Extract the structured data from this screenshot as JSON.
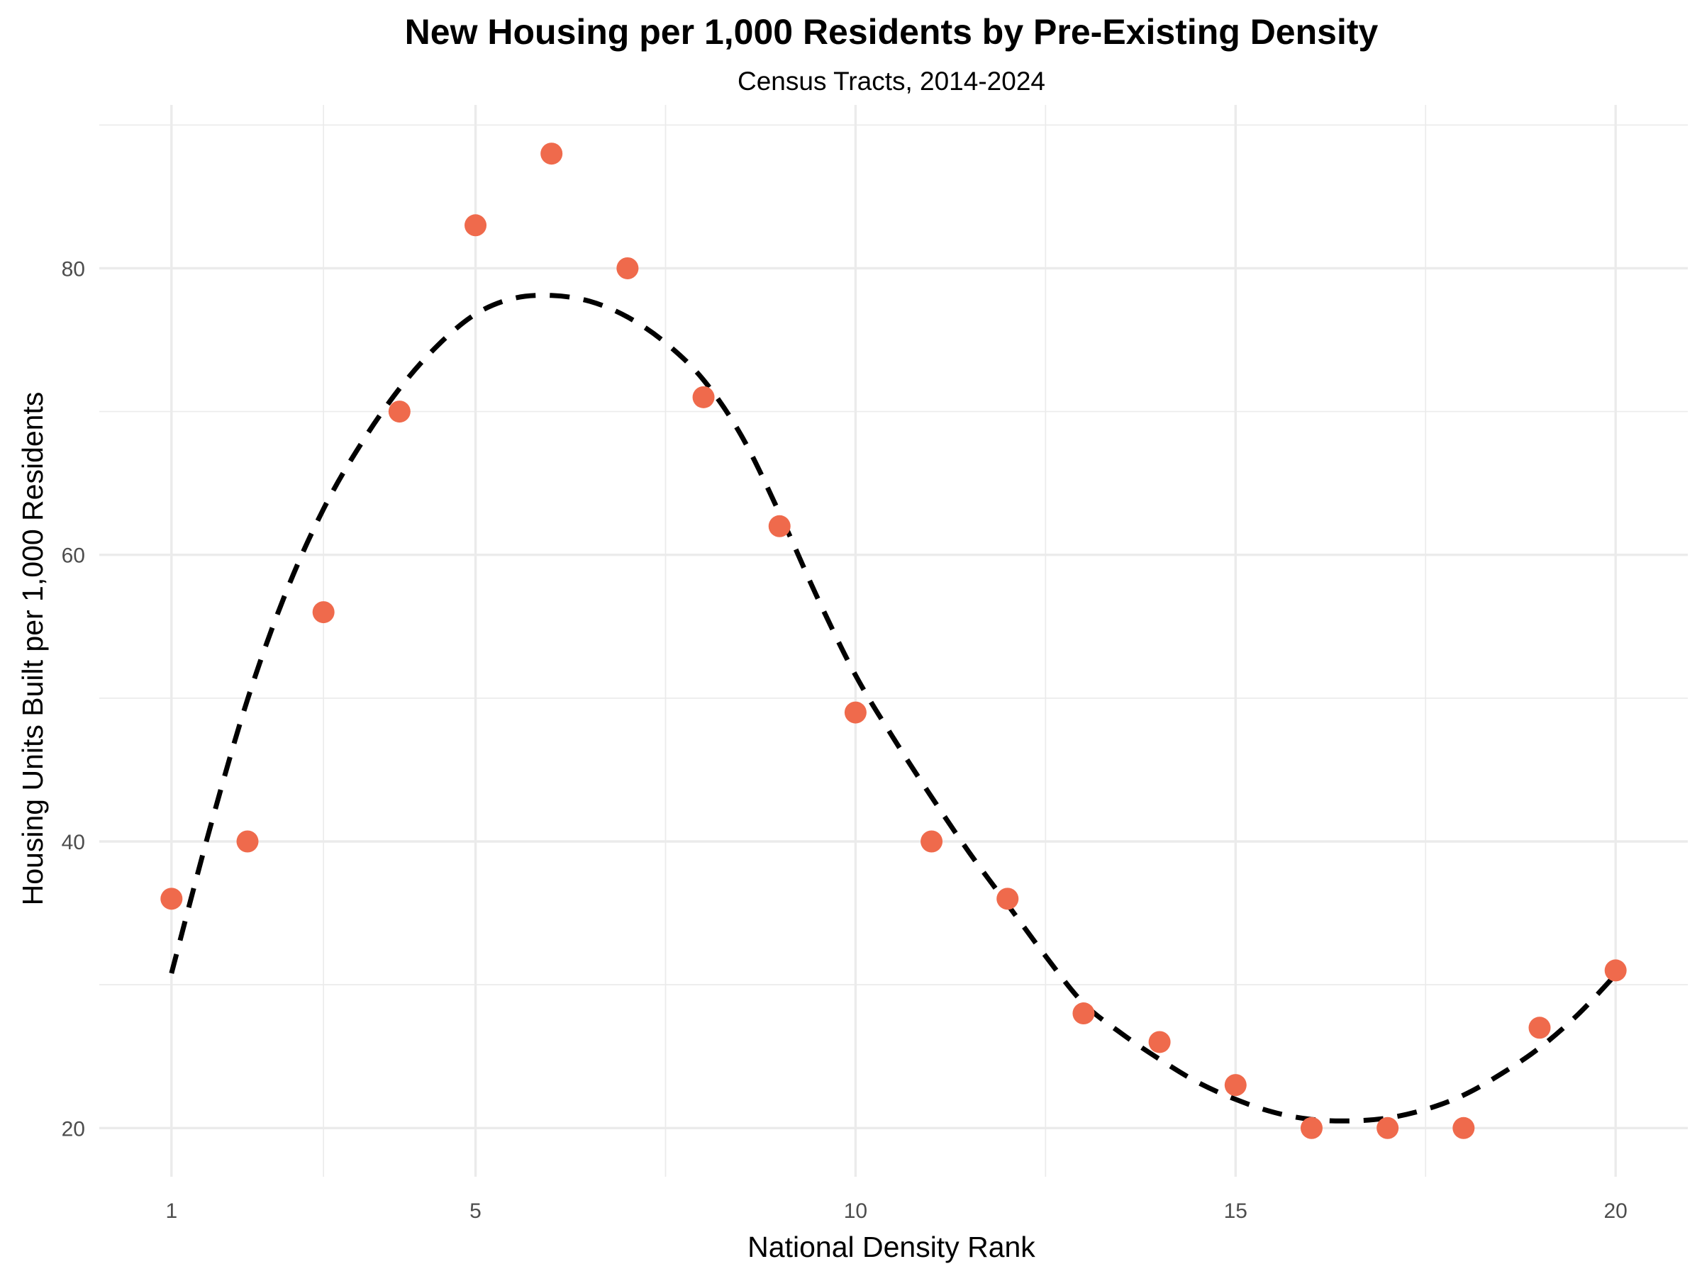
{
  "chart_data": {
    "type": "scatter",
    "title": "New Housing per 1,000 Residents by Pre-Existing Density",
    "subtitle": "Census Tracts, 2014-2024",
    "xlabel": "National Density Rank",
    "ylabel": "Housing Units Built per 1,000 Residents",
    "x_ticks": [
      1,
      5,
      10,
      15,
      20
    ],
    "y_ticks": [
      20,
      40,
      60,
      80
    ],
    "xlim": [
      0.05,
      20.95
    ],
    "ylim": [
      16.6,
      91.4
    ],
    "grid": true,
    "point_color": "#EF6A4C",
    "series": [
      {
        "x": [
          1,
          2,
          3,
          4,
          5,
          6,
          7,
          8,
          9,
          10,
          11,
          12,
          13,
          14,
          15,
          16,
          17,
          18,
          19,
          20
        ],
        "y": [
          36,
          40,
          56,
          70,
          83,
          88,
          80,
          71,
          62,
          49,
          40,
          36,
          28,
          26,
          23,
          20,
          20,
          20,
          27,
          31
        ]
      }
    ],
    "trend_line": {
      "style": "dashed",
      "color": "#000000",
      "x": [
        1,
        1.5,
        2,
        2.5,
        3,
        3.5,
        4,
        4.5,
        5,
        5.5,
        6,
        6.5,
        7,
        7.5,
        8,
        8.5,
        9,
        9.5,
        10,
        10.5,
        11,
        11.5,
        12,
        12.5,
        13,
        13.5,
        14,
        14.5,
        15,
        15.5,
        16,
        16.5,
        17,
        17.5,
        18,
        18.5,
        19,
        19.5,
        20
      ],
      "y": [
        30.8,
        40.8,
        49.9,
        57.3,
        63.2,
        67.8,
        71.6,
        74.6,
        76.8,
        77.9,
        78.1,
        77.7,
        76.6,
        74.8,
        72.2,
        68.3,
        62.9,
        57.0,
        51.6,
        47.2,
        43.1,
        39.2,
        35.6,
        32.0,
        28.7,
        26.6,
        24.8,
        23.2,
        22.0,
        21.1,
        20.6,
        20.5,
        20.7,
        21.3,
        22.3,
        23.8,
        25.6,
        27.9,
        30.7
      ]
    }
  }
}
